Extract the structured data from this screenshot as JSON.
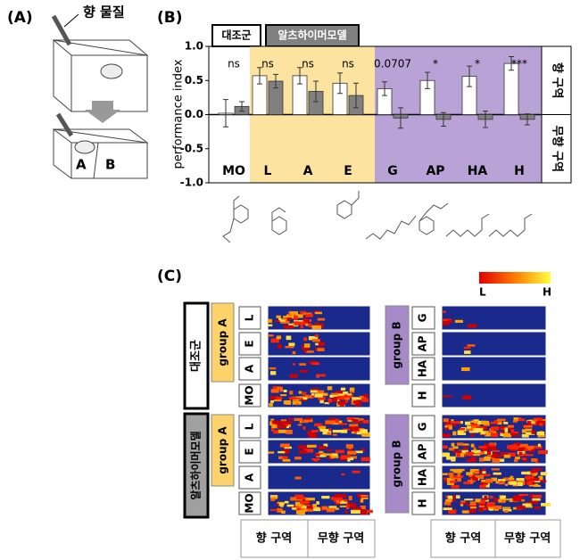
{
  "panel_labels": [
    "(A)",
    "(B)",
    "(C)"
  ],
  "panel_a": {
    "odor_label": "향 물질",
    "zone_a": "A",
    "zone_b": "B"
  },
  "chart_data": {
    "type": "bar",
    "y_label": "performance index",
    "categories": [
      "MO",
      "L",
      "A",
      "E",
      "G",
      "AP",
      "HA",
      "H"
    ],
    "series": [
      {
        "name": "대조군",
        "color": "#ffffff",
        "values": [
          0.02,
          0.57,
          0.57,
          0.46,
          0.38,
          0.5,
          0.56,
          0.75
        ],
        "errors": [
          0.2,
          0.12,
          0.12,
          0.15,
          0.1,
          0.12,
          0.15,
          0.1
        ]
      },
      {
        "name": "알츠하이머모델",
        "color": "#808080",
        "values": [
          0.12,
          0.49,
          0.34,
          0.28,
          -0.05,
          -0.07,
          -0.07,
          -0.07
        ],
        "errors": [
          0.07,
          0.1,
          0.15,
          0.18,
          0.15,
          0.1,
          0.12,
          0.08
        ]
      }
    ],
    "annotations": [
      "ns",
      "ns",
      "ns",
      "ns",
      "0.0707",
      "*",
      "*",
      "***"
    ],
    "ylim": [
      -1,
      1
    ],
    "yticks": [
      {
        "value": -1,
        "label": "-1.0"
      },
      {
        "value": -0.5,
        "label": "-0.5"
      },
      {
        "value": 0,
        "label": "0.0"
      },
      {
        "value": 0.5,
        "label": "0.5"
      },
      {
        "value": 1,
        "label": "1.0"
      }
    ],
    "side_labels": [
      "향 구역",
      "무향 구역"
    ]
  },
  "panel_c": {
    "colorbar": [
      "L",
      "H"
    ],
    "groups": [
      "대조군",
      "알츠하이머모델"
    ],
    "group_a": "group A",
    "group_b": "group B",
    "odors_a": [
      "L",
      "E",
      "A",
      "MO"
    ],
    "odors_b": [
      "G",
      "AP",
      "HA",
      "H"
    ],
    "zones": [
      "향 구역",
      "무향 구역"
    ]
  }
}
